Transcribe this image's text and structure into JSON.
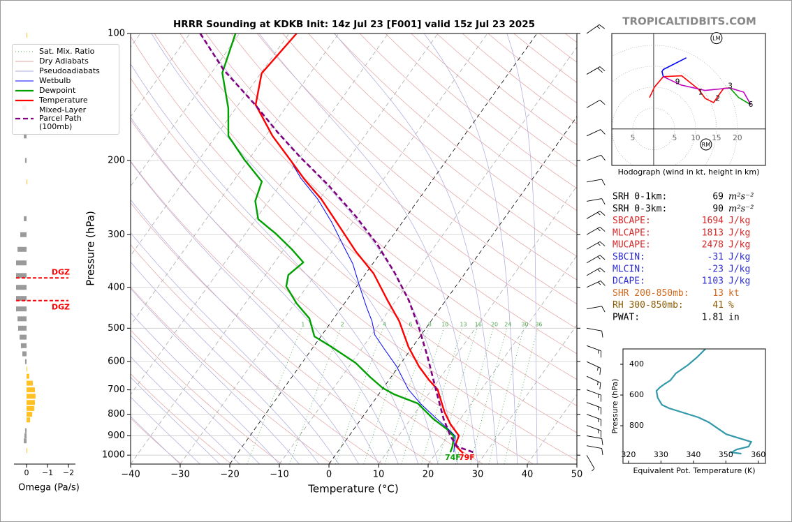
{
  "brand": "TROPICALTIDBITS.COM",
  "stats": [
    {
      "label": "SRH 0-1km:",
      "value": 69,
      "unit": "m²s⁻²",
      "color": "#000000"
    },
    {
      "label": "SRH 0-3km:",
      "value": 90,
      "unit": "m²s⁻²",
      "color": "#000000"
    },
    {
      "label": "SBCAPE:",
      "value": 1694,
      "unit": "J/kg",
      "color": "#d62728"
    },
    {
      "label": "MLCAPE:",
      "value": 1813,
      "unit": "J/kg",
      "color": "#d62728"
    },
    {
      "label": "MUCAPE:",
      "value": 2478,
      "unit": "J/kg",
      "color": "#d62728"
    },
    {
      "label": "SBCIN:",
      "value": -31,
      "unit": "J/kg",
      "color": "#2b2bd0"
    },
    {
      "label": "MLCIN:",
      "value": -23,
      "unit": "J/kg",
      "color": "#2b2bd0"
    },
    {
      "label": "DCAPE:",
      "value": 1103,
      "unit": "J/kg",
      "color": "#2b2bd0"
    },
    {
      "label": "SHR 200-850mb:",
      "value": 13,
      "unit": "kt",
      "color": "#d2691e"
    },
    {
      "label": "RH 300-850mb:",
      "value": 41,
      "unit": "%",
      "color": "#8b5a00"
    },
    {
      "label": "PWAT:",
      "value": 1.81,
      "unit": "in",
      "color": "#000000"
    }
  ],
  "chart_data": [
    {
      "type": "skewt",
      "title": "HRRR Sounding at KDKB Init: 14z Jul 23 [F001] valid 15z Jul 23 2025",
      "x_label": "Temperature (°C)",
      "y_label": "Pressure (hPa)",
      "xlim": [
        -40,
        50
      ],
      "ylim": [
        1050,
        100
      ],
      "log_y": true,
      "grid": true,
      "legend": "upper left",
      "xticks": [
        {
          "value": -40,
          "label": "−40"
        },
        {
          "value": -30,
          "label": "−30"
        },
        {
          "value": -20,
          "label": "−20"
        },
        {
          "value": -10,
          "label": "−10"
        },
        0,
        10,
        20,
        30,
        40,
        50
      ],
      "yticks": [
        100,
        200,
        300,
        400,
        500,
        600,
        700,
        800,
        900,
        1000
      ],
      "highlight_isotherms": [
        -20,
        0
      ],
      "background_lines": [
        {
          "name": "Sat. Mix. Ratio",
          "color": "#55aa55",
          "linestyle": "dotted"
        },
        {
          "name": "Dry Adiabats",
          "color": "#e3a0a0",
          "linestyle": "solid"
        },
        {
          "name": "Pseudoadiabats",
          "color": "#a8a8dc",
          "linestyle": "solid"
        }
      ],
      "mixing_ratio_labels": [
        1,
        2,
        4,
        6,
        8,
        10,
        13,
        16,
        20,
        24,
        30,
        36
      ],
      "series": [
        {
          "name": "Wetbulb",
          "color": "#0000ff",
          "width": 1,
          "linestyle": "solid",
          "pressure": [
            198.6,
            220,
            247,
            280,
            318.7,
            351.8,
            397.6,
            445.7,
            481,
            519,
            560,
            616,
            699,
            754,
            820,
            868,
            902,
            948,
            985
          ],
          "values": [
            -51.8,
            -46.9,
            -40.4,
            -34.3,
            -28.5,
            -24,
            -19.4,
            -15,
            -11.9,
            -9.3,
            -5.4,
            -0.4,
            5.3,
            9.7,
            15.2,
            19.1,
            21.5,
            22.6,
            23.5
          ]
        },
        {
          "name": "Dewpoint",
          "color": "#00a000",
          "width": 2.4,
          "linestyle": "solid",
          "pressure": [
            100,
            124,
            150.4,
            175,
            199,
            224.4,
            249.7,
            275.7,
            298.7,
            324.9,
            349,
            374,
            397.6,
            437,
            474,
            523,
            554,
            605,
            653,
            693,
            718,
            754,
            820,
            868,
            902,
            955,
            985
          ],
          "values": [
            -80.8,
            -77.8,
            -71.5,
            -67.5,
            -60.9,
            -54.2,
            -52.7,
            -49.5,
            -43.8,
            -38.4,
            -34.2,
            -35.4,
            -34.2,
            -29.6,
            -24.9,
            -21.3,
            -16.3,
            -9.1,
            -4.2,
            -0.1,
            3.2,
            9.2,
            14.5,
            18.8,
            21.2,
            22.4,
            22.8
          ]
        },
        {
          "name": "Temperature",
          "color": "#ff0000",
          "width": 2.4,
          "linestyle": "solid",
          "pressure": [
            100,
            124.3,
            147.5,
            175,
            198.6,
            222.7,
            246.9,
            293,
            328.6,
            371,
            429,
            481,
            554,
            616,
            665,
            699,
            790,
            845,
            899,
            948,
            990
          ],
          "values": [
            -68.5,
            -69.8,
            -66.5,
            -58.6,
            -51.8,
            -45.7,
            -39.7,
            -31,
            -25.2,
            -18.4,
            -11.8,
            -6.4,
            -0.8,
            4.1,
            8.2,
            11.2,
            15.8,
            18.8,
            22.1,
            22.8,
            25.5
          ]
        },
        {
          "name": "Mixed-Layer\nParcel Path (100mb)",
          "color": "#800080",
          "width": 2.6,
          "linestyle": "dashed",
          "pressure": [
            100,
            121.9,
            147.5,
            171.8,
            196.3,
            228.7,
            271.6,
            316.2,
            368.4,
            429,
            499.6,
            582,
            704,
            820,
            902,
            955,
            985
          ],
          "values": [
            -87.9,
            -78,
            -66.6,
            -58,
            -50,
            -40.3,
            -30.2,
            -21.9,
            -14.4,
            -7.5,
            -1.4,
            4.3,
            11.1,
            16.6,
            20.5,
            23.4,
            27.5
          ]
        }
      ],
      "surface_labels": [
        {
          "text": "74F",
          "color": "#00a000"
        },
        {
          "text": "79F",
          "color": "#ff0000"
        }
      ],
      "winds": {
        "pressure": [
          100,
          125,
          150,
          175,
          200,
          225,
          250,
          275,
          300,
          325,
          350,
          375,
          400,
          450,
          500,
          550,
          600,
          650,
          700,
          750,
          800,
          850,
          900,
          950,
          1000
        ],
        "direction": [
          55,
          60,
          60,
          65,
          70,
          80,
          80,
          60,
          60,
          60,
          60,
          60,
          65,
          80,
          100,
          110,
          115,
          115,
          110,
          110,
          110,
          110,
          100,
          100,
          150
        ],
        "speed": [
          15,
          20,
          10,
          10,
          10,
          10,
          10,
          15,
          15,
          15,
          15,
          15,
          15,
          10,
          10,
          15,
          15,
          15,
          15,
          15,
          15,
          15,
          10,
          10,
          5
        ]
      }
    },
    {
      "type": "omega",
      "x_label": "Omega (Pa/s)",
      "xlim": [
        0.5,
        -2.3
      ],
      "xticks": [
        0,
        {
          "value": -1,
          "label": "−1"
        },
        {
          "value": -2,
          "label": "−2"
        }
      ],
      "pressure": [
        101,
        150,
        175,
        200,
        225,
        275,
        300,
        325,
        350,
        375,
        400,
        425,
        450,
        475,
        500,
        525,
        550,
        575,
        600,
        625,
        650,
        675,
        700,
        725,
        750,
        775,
        800,
        825,
        875,
        900,
        925,
        975
      ],
      "values": [
        -0.02,
        0.2,
        0.13,
        0.07,
        -0.02,
        0.13,
        0.3,
        0.43,
        0.5,
        0.5,
        0.5,
        0.5,
        0.5,
        0.43,
        0.4,
        0.33,
        0.27,
        0.2,
        0.07,
        -0.03,
        -0.13,
        -0.3,
        -0.4,
        -0.43,
        -0.4,
        -0.37,
        -0.27,
        -0.17,
        0.07,
        0.1,
        0.13,
        -0.03
      ],
      "rising_color": "#ffc125",
      "sinking_color": "#9a9a9a",
      "dgz": {
        "label": "DGZ",
        "pressure": [
          380,
          430
        ],
        "color": "#ff0000"
      }
    },
    {
      "type": "hodograph",
      "caption": "Hodograph (wind in kt, height in km)",
      "xlim": [
        -10,
        26.7
      ],
      "ylim": [
        -8.7,
        22.8
      ],
      "xticks": [
        {
          "value": -5,
          "label": "5"
        },
        5,
        10,
        15,
        20
      ],
      "segments": [
        {
          "color": "#ff0000",
          "u": [
            -1,
            0.2,
            2.3,
            6.7,
            10.7,
            12.3,
            14.3,
            15.7,
            16.7,
            18.2
          ],
          "v": [
            7.5,
            10,
            12.5,
            12.7,
            9.5,
            7.3,
            6.3,
            8.3,
            9.7,
            9.8
          ]
        },
        {
          "color": "#00a000",
          "u": [
            18.2,
            20.3,
            23.2
          ],
          "v": [
            9.8,
            7.5,
            5.8
          ]
        },
        {
          "color": "#c000c0",
          "u": [
            23.2,
            21.5,
            18.2,
            12.3,
            6.5,
            2.3
          ],
          "v": [
            5.8,
            8.8,
            9.8,
            9.2,
            10.5,
            12.5
          ]
        },
        {
          "color": "#0000ff",
          "u": [
            2.3,
            2,
            2.3,
            7.8
          ],
          "v": [
            12.5,
            13.7,
            14.2,
            17
          ]
        }
      ],
      "height_labels": {
        "labels": [
          1,
          2,
          3,
          6,
          9
        ],
        "u": [
          11.2,
          15.3,
          18.3,
          23.2,
          5.7
        ],
        "v": [
          8.7,
          7.2,
          10.2,
          5.8,
          11.2
        ]
      },
      "storm_motion": [
        {
          "label": "LM",
          "u": 15,
          "v": 21.7
        },
        {
          "label": "RM",
          "u": 12.5,
          "v": -3.7
        }
      ]
    },
    {
      "type": "line",
      "x_label": "Equivalent Pot. Temperature (K)",
      "y_label": "Pressure (hPa)",
      "xlim": [
        318.3,
        362.2
      ],
      "ylim": [
        1045,
        300
      ],
      "xticks": [
        320,
        330,
        340,
        350,
        360
      ],
      "yticks": [
        400,
        600,
        800
      ],
      "color": "#3399aa",
      "values": [
        343.7,
        341.1,
        338.3,
        334.6,
        332.9,
        331.2,
        329.7,
        328.6,
        329,
        330.3,
        332.5,
        341.5,
        344.7,
        350.1,
        357.8,
        357,
        353.3,
        351.8,
        354.8
      ],
      "pressure": [
        300,
        355,
        405,
        459,
        505,
        527,
        550,
        573,
        618,
        664,
        686,
        745,
        777,
        855,
        905,
        936,
        955,
        973,
        982
      ]
    }
  ]
}
